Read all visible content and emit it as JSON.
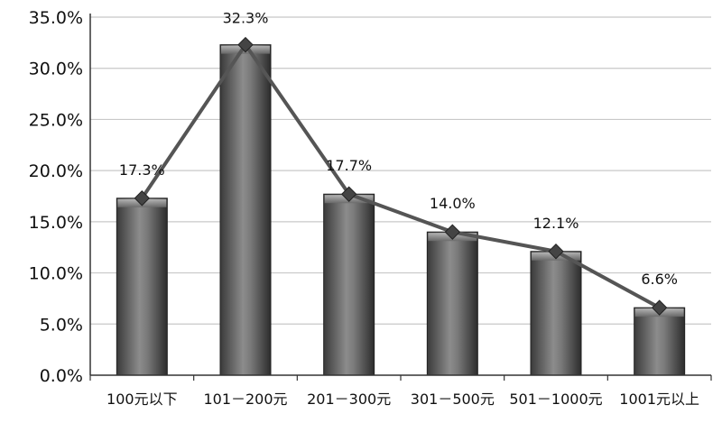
{
  "chart_data": {
    "type": "bar",
    "categories": [
      "100元以下",
      "101－200元",
      "201－300元",
      "301－500元",
      "501－1000元",
      "1001元以上"
    ],
    "values": [
      17.3,
      32.3,
      17.7,
      14.0,
      12.1,
      6.6
    ],
    "data_labels": [
      "17.3%",
      "32.3%",
      "17.7%",
      "14.0%",
      "12.1%",
      "6.6%"
    ],
    "overlay": "line-with-diamond-markers",
    "ylim": [
      0,
      35
    ],
    "yticks": [
      0,
      5,
      10,
      15,
      20,
      25,
      30,
      35
    ],
    "ytick_labels": [
      "0.0%",
      "5.0%",
      "10.0%",
      "15.0%",
      "20.0%",
      "25.0%",
      "30.0%",
      "35.0%"
    ],
    "grid": true,
    "legend": "none",
    "title": "",
    "xlabel": "",
    "ylabel": "",
    "colors": {
      "bar_dark": "#3a3a3a",
      "bar_mid": "#7a7a7a",
      "bar_light": "#9a9a9a",
      "line": "#555555",
      "marker": "#444444",
      "grid": "#c8c8c8",
      "axis": "#333333"
    }
  }
}
